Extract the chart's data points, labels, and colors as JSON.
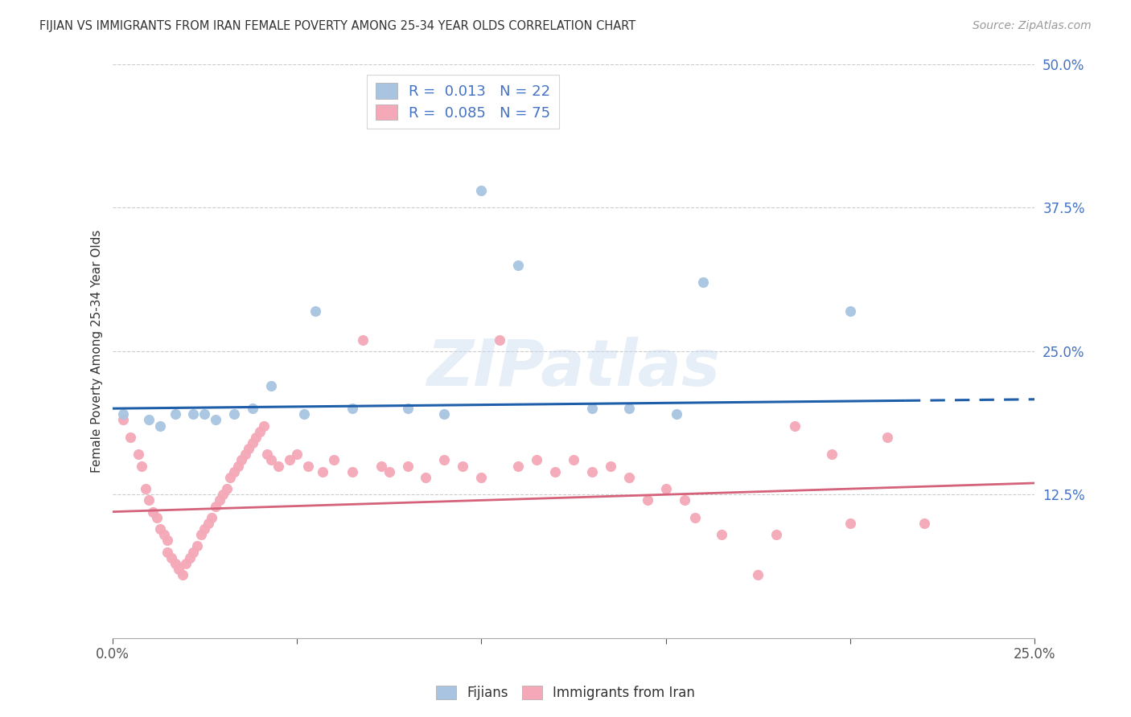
{
  "title": "FIJIAN VS IMMIGRANTS FROM IRAN FEMALE POVERTY AMONG 25-34 YEAR OLDS CORRELATION CHART",
  "source": "Source: ZipAtlas.com",
  "ylabel": "Female Poverty Among 25-34 Year Olds",
  "xlim": [
    0.0,
    0.25
  ],
  "ylim": [
    0.0,
    0.5
  ],
  "fijian_color": "#a8c4e0",
  "iran_color": "#f4a8b8",
  "fijian_line_color": "#1f5faa",
  "iran_line_color": "#d4627a",
  "watermark_text": "ZIPatlas",
  "fijian_pts": [
    [
      0.003,
      0.195
    ],
    [
      0.01,
      0.19
    ],
    [
      0.013,
      0.185
    ],
    [
      0.017,
      0.195
    ],
    [
      0.022,
      0.195
    ],
    [
      0.025,
      0.195
    ],
    [
      0.028,
      0.19
    ],
    [
      0.033,
      0.195
    ],
    [
      0.038,
      0.2
    ],
    [
      0.043,
      0.22
    ],
    [
      0.052,
      0.195
    ],
    [
      0.055,
      0.285
    ],
    [
      0.065,
      0.2
    ],
    [
      0.08,
      0.2
    ],
    [
      0.09,
      0.195
    ],
    [
      0.1,
      0.39
    ],
    [
      0.11,
      0.325
    ],
    [
      0.13,
      0.2
    ],
    [
      0.14,
      0.2
    ],
    [
      0.153,
      0.195
    ],
    [
      0.16,
      0.31
    ],
    [
      0.2,
      0.285
    ]
  ],
  "iran_pts": [
    [
      0.003,
      0.19
    ],
    [
      0.005,
      0.175
    ],
    [
      0.007,
      0.16
    ],
    [
      0.008,
      0.15
    ],
    [
      0.009,
      0.13
    ],
    [
      0.01,
      0.12
    ],
    [
      0.011,
      0.11
    ],
    [
      0.012,
      0.105
    ],
    [
      0.013,
      0.095
    ],
    [
      0.014,
      0.09
    ],
    [
      0.015,
      0.085
    ],
    [
      0.015,
      0.075
    ],
    [
      0.016,
      0.07
    ],
    [
      0.017,
      0.065
    ],
    [
      0.018,
      0.06
    ],
    [
      0.019,
      0.055
    ],
    [
      0.02,
      0.065
    ],
    [
      0.021,
      0.07
    ],
    [
      0.022,
      0.075
    ],
    [
      0.023,
      0.08
    ],
    [
      0.024,
      0.09
    ],
    [
      0.025,
      0.095
    ],
    [
      0.026,
      0.1
    ],
    [
      0.027,
      0.105
    ],
    [
      0.028,
      0.115
    ],
    [
      0.029,
      0.12
    ],
    [
      0.03,
      0.125
    ],
    [
      0.031,
      0.13
    ],
    [
      0.032,
      0.14
    ],
    [
      0.033,
      0.145
    ],
    [
      0.034,
      0.15
    ],
    [
      0.035,
      0.155
    ],
    [
      0.036,
      0.16
    ],
    [
      0.037,
      0.165
    ],
    [
      0.038,
      0.17
    ],
    [
      0.039,
      0.175
    ],
    [
      0.04,
      0.18
    ],
    [
      0.041,
      0.185
    ],
    [
      0.042,
      0.16
    ],
    [
      0.043,
      0.155
    ],
    [
      0.045,
      0.15
    ],
    [
      0.048,
      0.155
    ],
    [
      0.05,
      0.16
    ],
    [
      0.053,
      0.15
    ],
    [
      0.057,
      0.145
    ],
    [
      0.06,
      0.155
    ],
    [
      0.065,
      0.145
    ],
    [
      0.068,
      0.26
    ],
    [
      0.073,
      0.15
    ],
    [
      0.075,
      0.145
    ],
    [
      0.08,
      0.15
    ],
    [
      0.085,
      0.14
    ],
    [
      0.09,
      0.155
    ],
    [
      0.095,
      0.15
    ],
    [
      0.1,
      0.14
    ],
    [
      0.105,
      0.26
    ],
    [
      0.11,
      0.15
    ],
    [
      0.115,
      0.155
    ],
    [
      0.12,
      0.145
    ],
    [
      0.125,
      0.155
    ],
    [
      0.13,
      0.145
    ],
    [
      0.135,
      0.15
    ],
    [
      0.14,
      0.14
    ],
    [
      0.145,
      0.12
    ],
    [
      0.15,
      0.13
    ],
    [
      0.155,
      0.12
    ],
    [
      0.158,
      0.105
    ],
    [
      0.165,
      0.09
    ],
    [
      0.175,
      0.055
    ],
    [
      0.18,
      0.09
    ],
    [
      0.185,
      0.185
    ],
    [
      0.195,
      0.16
    ],
    [
      0.2,
      0.1
    ],
    [
      0.21,
      0.175
    ],
    [
      0.22,
      0.1
    ]
  ],
  "fijian_line": {
    "x0": 0.0,
    "x1": 0.25,
    "y0": 0.2,
    "y1": 0.208,
    "solid_end": 0.215
  },
  "iran_line": {
    "x0": 0.0,
    "x1": 0.25,
    "y0": 0.11,
    "y1": 0.135
  },
  "yticks": [
    0.0,
    0.125,
    0.25,
    0.375,
    0.5
  ],
  "ytick_labels": [
    "",
    "12.5%",
    "25.0%",
    "37.5%",
    "50.0%"
  ],
  "xtick_labels": [
    "0.0%",
    "",
    "",
    "",
    "",
    "25.0%"
  ],
  "xtick_vals": [
    0.0,
    0.05,
    0.1,
    0.15,
    0.2,
    0.25
  ]
}
